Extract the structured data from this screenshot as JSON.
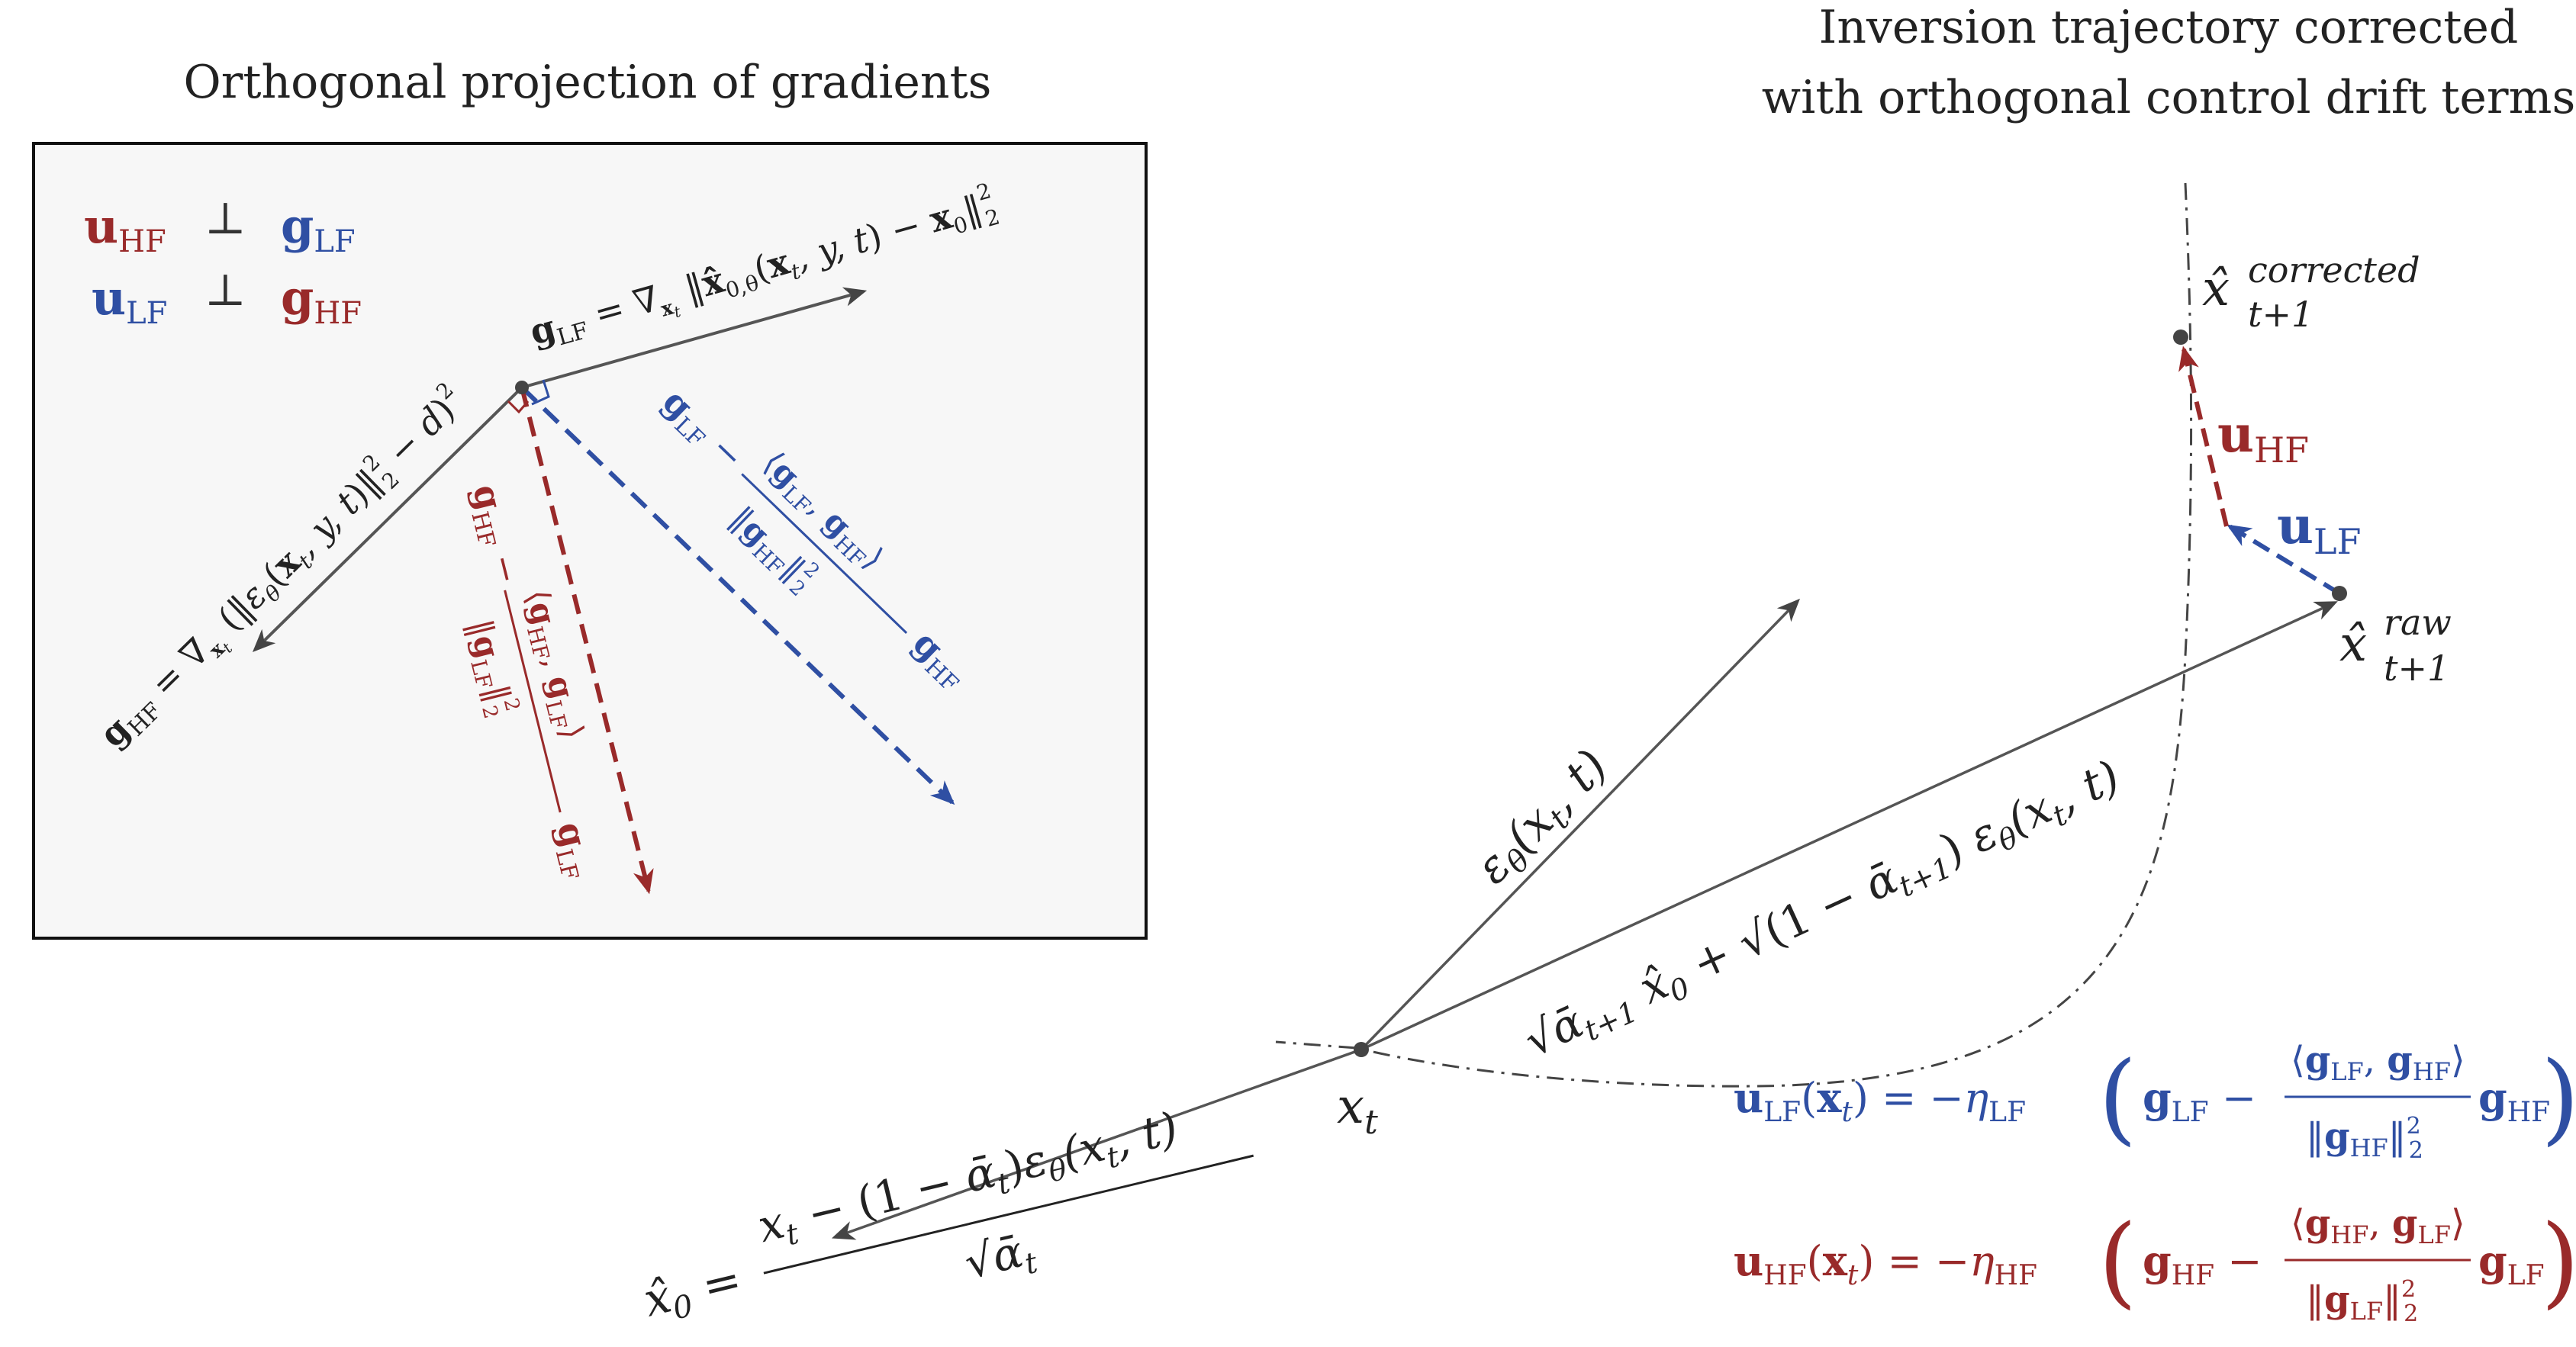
{
  "left_panel": {
    "title": "Orthogonal projection of gradients",
    "rel_1": "u_HF ⊥ g_LF",
    "rel_2": "u_LF ⊥ g_HF",
    "g_lf_label": "g_LF = ∇_xₜ ‖x̂₀,θ(xₜ, y, t) − x₀‖²₂",
    "g_hf_label": "g_HF = ∇_xₜ (‖ε_θ(xₜ, y, t)‖²₂ − d)²",
    "proj_blue_label": "g_LF − ⟨g_LF, g_HF⟩ / ‖g_HF‖²₂ · g_HF",
    "proj_red_label": "g_HF − ⟨g_HF, g_LF⟩ / ‖g_LF‖²₂ · g_LF"
  },
  "right_panel": {
    "title_line1": "Inversion trajectory corrected",
    "title_line2": "with orthogonal control drift terms",
    "x_corrected": "x̂_{t+1}^{corrected}",
    "x_raw": "x̂_{t+1}^{raw}",
    "x_t": "xₜ",
    "u_hf": "u_HF",
    "u_lf": "u_LF",
    "eps_label": "ε_θ(xₜ, t)",
    "step_label": "√ᾱ_{t+1} x̂₀ + √(1 − ᾱ_{t+1}) ε_θ(xₜ, t)",
    "x0_label": "x̂₀ = (xₜ − (1 − ᾱₜ) ε_θ(xₜ, t)) / √ᾱₜ",
    "eq_lf": "u_LF(xₜ) = −η_LF ( g_LF − ⟨g_LF, g_HF⟩ / ‖g_HF‖²₂ g_HF )",
    "eq_hf": "u_HF(xₜ) = −η_HF ( g_HF − ⟨g_HF, g_LF⟩ / ‖g_LF‖²₂ g_LF )"
  },
  "colors": {
    "lf": "#2f4fa3",
    "hf": "#992a2a",
    "ink": "#333333",
    "panel_bg": "#f7f7f7"
  }
}
